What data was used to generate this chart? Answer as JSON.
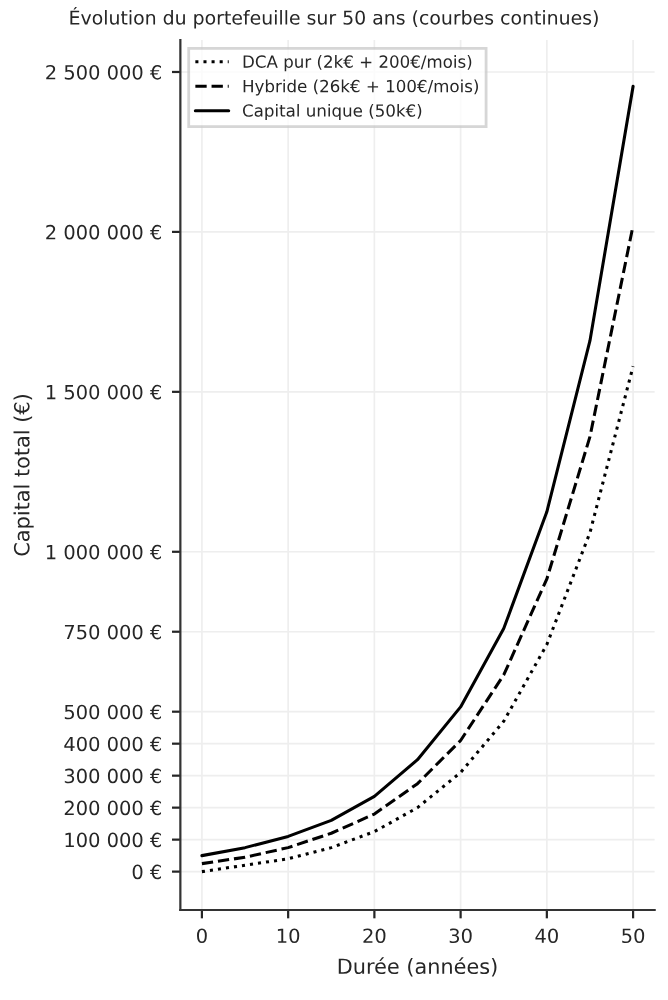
{
  "chart_data": {
    "type": "line",
    "title": "Évolution du portefeuille sur 50 ans (courbes continues)",
    "xlabel": "Durée (années)",
    "ylabel": "Capital total (€)",
    "x": [
      0,
      5,
      10,
      15,
      20,
      25,
      30,
      35,
      40,
      45,
      50
    ],
    "series": [
      {
        "name": "DCA pur (2k€ + 200€/mois)",
        "color": "#000000",
        "line_style": "dotted",
        "values": [
          0,
          20000,
          40000,
          75000,
          125000,
          200000,
          310000,
          470000,
          710000,
          1060000,
          1580000
        ]
      },
      {
        "name": "Hybride (26k€ + 100€/mois)",
        "color": "#000000",
        "line_style": "dashed",
        "values": [
          25000,
          45000,
          75000,
          120000,
          180000,
          275000,
          410000,
          615000,
          915000,
          1360000,
          2020000
        ]
      },
      {
        "name": "Capital unique (50k€)",
        "color": "#000000",
        "line_style": "solid",
        "values": [
          50000,
          75000,
          110000,
          160000,
          235000,
          350000,
          515000,
          760000,
          1125000,
          1660000,
          2455000
        ]
      }
    ],
    "xlim": [
      -2.5,
      52.5
    ],
    "xticks": [
      0,
      10,
      20,
      30,
      40,
      50
    ],
    "ylim": [
      -120000,
      2600000
    ],
    "yticks": [
      {
        "value": 0,
        "label": "0 €"
      },
      {
        "value": 100000,
        "label": "100 000 €"
      },
      {
        "value": 200000,
        "label": "200 000 €"
      },
      {
        "value": 300000,
        "label": "300 000 €"
      },
      {
        "value": 400000,
        "label": "400 000 €"
      },
      {
        "value": 500000,
        "label": "500 000 €"
      },
      {
        "value": 750000,
        "label": "750 000 €"
      },
      {
        "value": 1000000,
        "label": "1 000 000 €"
      },
      {
        "value": 1500000,
        "label": "1 500 000 €"
      },
      {
        "value": 2000000,
        "label": "2 000 000 €"
      },
      {
        "value": 2500000,
        "label": "2 500 000 €"
      }
    ],
    "grid": true,
    "legend": "top left"
  }
}
